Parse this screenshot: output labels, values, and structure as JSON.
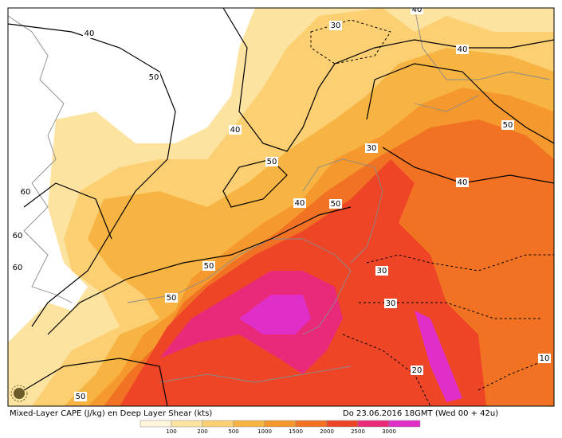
{
  "map": {
    "title": "Mixed-Layer CAPE (J/kg) en Deep Layer Shear (kts)",
    "valid_time": "Do 23.06.2016 18GMT (Wed 00 + 42u)",
    "legend": {
      "levels": [
        100,
        200,
        500,
        1000,
        1500,
        2000,
        2500,
        3000
      ],
      "colors": [
        "#fff6dc",
        "#fde3a0",
        "#fbcf72",
        "#f8b443",
        "#f5982e",
        "#f27224",
        "#ef4527",
        "#e92a7a",
        "#e02ec8"
      ]
    },
    "contour_labels": [
      "40",
      "30",
      "40",
      "50",
      "40",
      "40",
      "50",
      "30",
      "50",
      "40",
      "40",
      "50",
      "60",
      "60",
      "60",
      "30",
      "50",
      "50",
      "30",
      "20",
      "10",
      "50"
    ]
  }
}
